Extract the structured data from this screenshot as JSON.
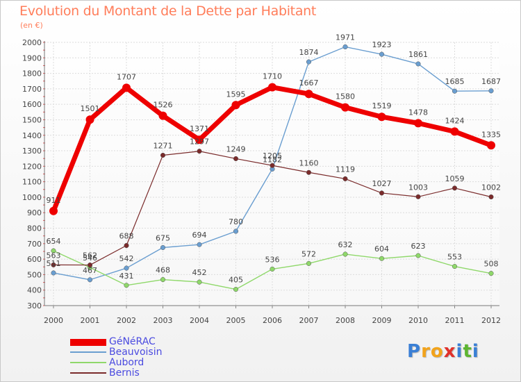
{
  "header": {
    "title": "Evolution du Montant de la Dette par Habitant",
    "unit": "(en €)"
  },
  "brand": {
    "letters": [
      "P",
      "r",
      "o",
      "x",
      "i",
      "t",
      "i"
    ],
    "colors": [
      "#3a7fd5",
      "#f2a31b",
      "#f2a31b",
      "#e0312b",
      "#3a7fd5",
      "#5db531",
      "#3a7fd5"
    ]
  },
  "chart_data": {
    "type": "line",
    "title": "Evolution du Montant de la Dette par Habitant",
    "ylabel": "(en €)",
    "xlabel": "",
    "x": [
      "2000",
      "2001",
      "2002",
      "2003",
      "2004",
      "2005",
      "2006",
      "2007",
      "2008",
      "2009",
      "2010",
      "2011",
      "2012"
    ],
    "ylim": [
      300,
      2000
    ],
    "yticks": [
      300,
      400,
      500,
      600,
      700,
      800,
      900,
      1000,
      1100,
      1200,
      1300,
      1400,
      1500,
      1600,
      1700,
      1800,
      1900,
      2000
    ],
    "grid": true,
    "legend_position": "bottom-left",
    "series": [
      {
        "name": "GéNéRAC",
        "color": "#ee0000",
        "values": [
          911,
          1501,
          1707,
          1526,
          1371,
          1595,
          1710,
          1667,
          1580,
          1519,
          1478,
          1424,
          1335
        ]
      },
      {
        "name": "Beauvoisin",
        "color": "#6a9ed0",
        "values": [
          511,
          467,
          542,
          675,
          694,
          780,
          1182,
          1874,
          1971,
          1923,
          1861,
          1685,
          1687
        ]
      },
      {
        "name": "Aubord",
        "color": "#8fd86a",
        "values": [
          654,
          546,
          431,
          468,
          452,
          405,
          536,
          572,
          632,
          604,
          623,
          553,
          508
        ]
      },
      {
        "name": "Bernis",
        "color": "#7a2b2b",
        "values": [
          563,
          562,
          688,
          1271,
          1297,
          1249,
          1205,
          1160,
          1119,
          1027,
          1003,
          1059,
          1002
        ]
      }
    ]
  }
}
